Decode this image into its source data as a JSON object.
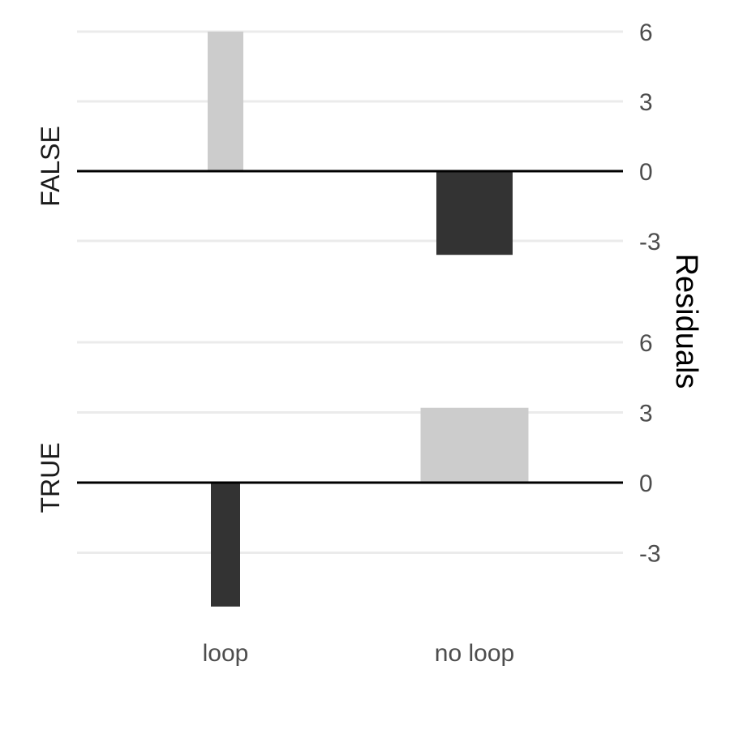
{
  "chart_data": {
    "type": "bar",
    "ylabel": "Residuals",
    "categories": [
      "loop",
      "no loop"
    ],
    "y_ticks": [
      -3,
      0,
      3,
      6
    ],
    "y_tick_labels": [
      "-3",
      "0",
      "3",
      "6"
    ],
    "grid": true,
    "y_axis_position": "right",
    "facets": [
      {
        "label": "FALSE",
        "ylim": [
          -4.5,
          6.0
        ],
        "bars": [
          {
            "category": "loop",
            "value": 6.0,
            "color": "#cccccc"
          },
          {
            "category": "no loop",
            "value": -3.6,
            "color": "#333333"
          }
        ]
      },
      {
        "label": "TRUE",
        "ylim": [
          -5.5,
          6.0
        ],
        "bars": [
          {
            "category": "loop",
            "value": -5.3,
            "color": "#333333"
          },
          {
            "category": "no loop",
            "value": 3.2,
            "color": "#cccccc"
          }
        ]
      }
    ]
  }
}
